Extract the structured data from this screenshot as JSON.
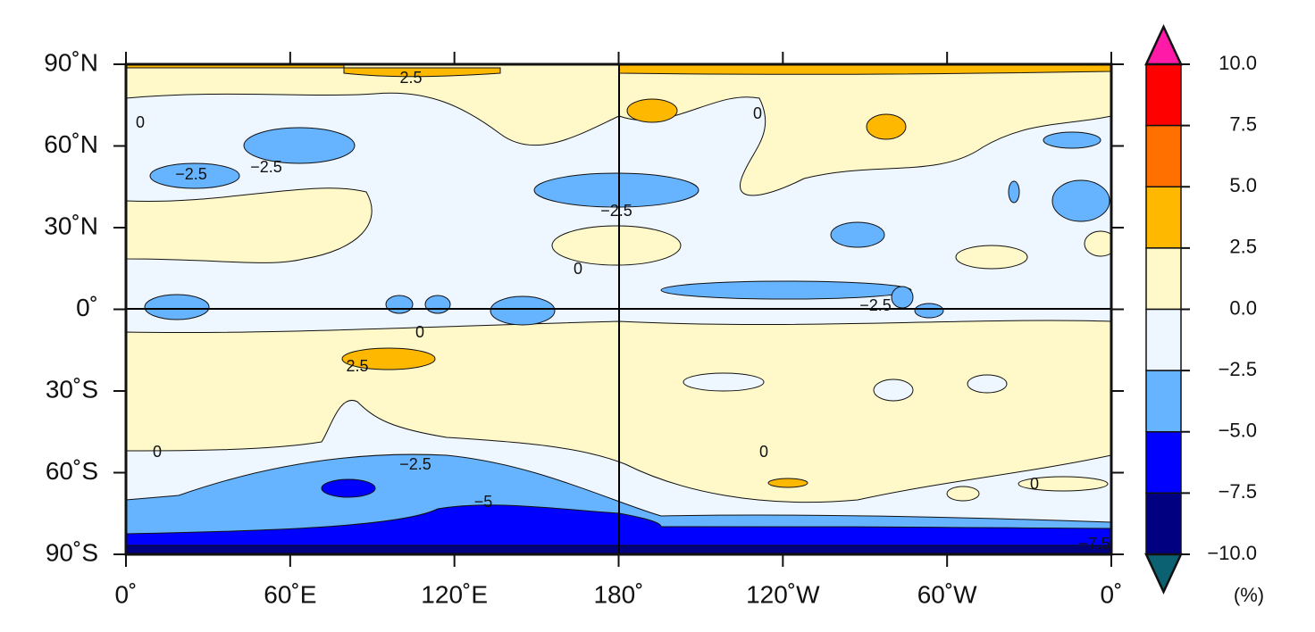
{
  "map": {
    "lon_ticks": [
      "0˚",
      "60˚E",
      "120˚E",
      "180˚",
      "120˚W",
      "60˚W",
      "0˚"
    ],
    "lat_ticks": [
      "90˚N",
      "60˚N",
      "30˚N",
      "0˚",
      "30˚S",
      "60˚S",
      "90˚S"
    ],
    "contour_labels": [
      "2.5",
      "0",
      "0",
      "−2.5",
      "−2.5",
      "−2.5",
      "0",
      "−2.5",
      "0",
      "2.5",
      "0",
      "0",
      "−2.5",
      "−5",
      "0",
      "−7.5"
    ],
    "colorbar": {
      "levels": [
        {
          "value": 10,
          "label": "10.0"
        },
        {
          "value": 7.5,
          "label": "7.5"
        },
        {
          "value": 5,
          "label": "5.0"
        },
        {
          "value": 2.5,
          "label": "2.5"
        },
        {
          "value": 0,
          "label": "0.0"
        },
        {
          "value": -2.5,
          "label": "−2.5"
        },
        {
          "value": -5,
          "label": "−5.0"
        },
        {
          "value": -7.5,
          "label": "−7.5"
        },
        {
          "value": -10,
          "label": "−10.0"
        }
      ],
      "colors": [
        "#ff0000",
        "#ff7000",
        "#ffb800",
        "#fff8c8",
        "#eef6ff",
        "#66b3ff",
        "#0000ff",
        "#000080"
      ],
      "extend_colors": [
        "#ff1aa8",
        "#0b6072"
      ],
      "unit": "(%)"
    }
  }
}
